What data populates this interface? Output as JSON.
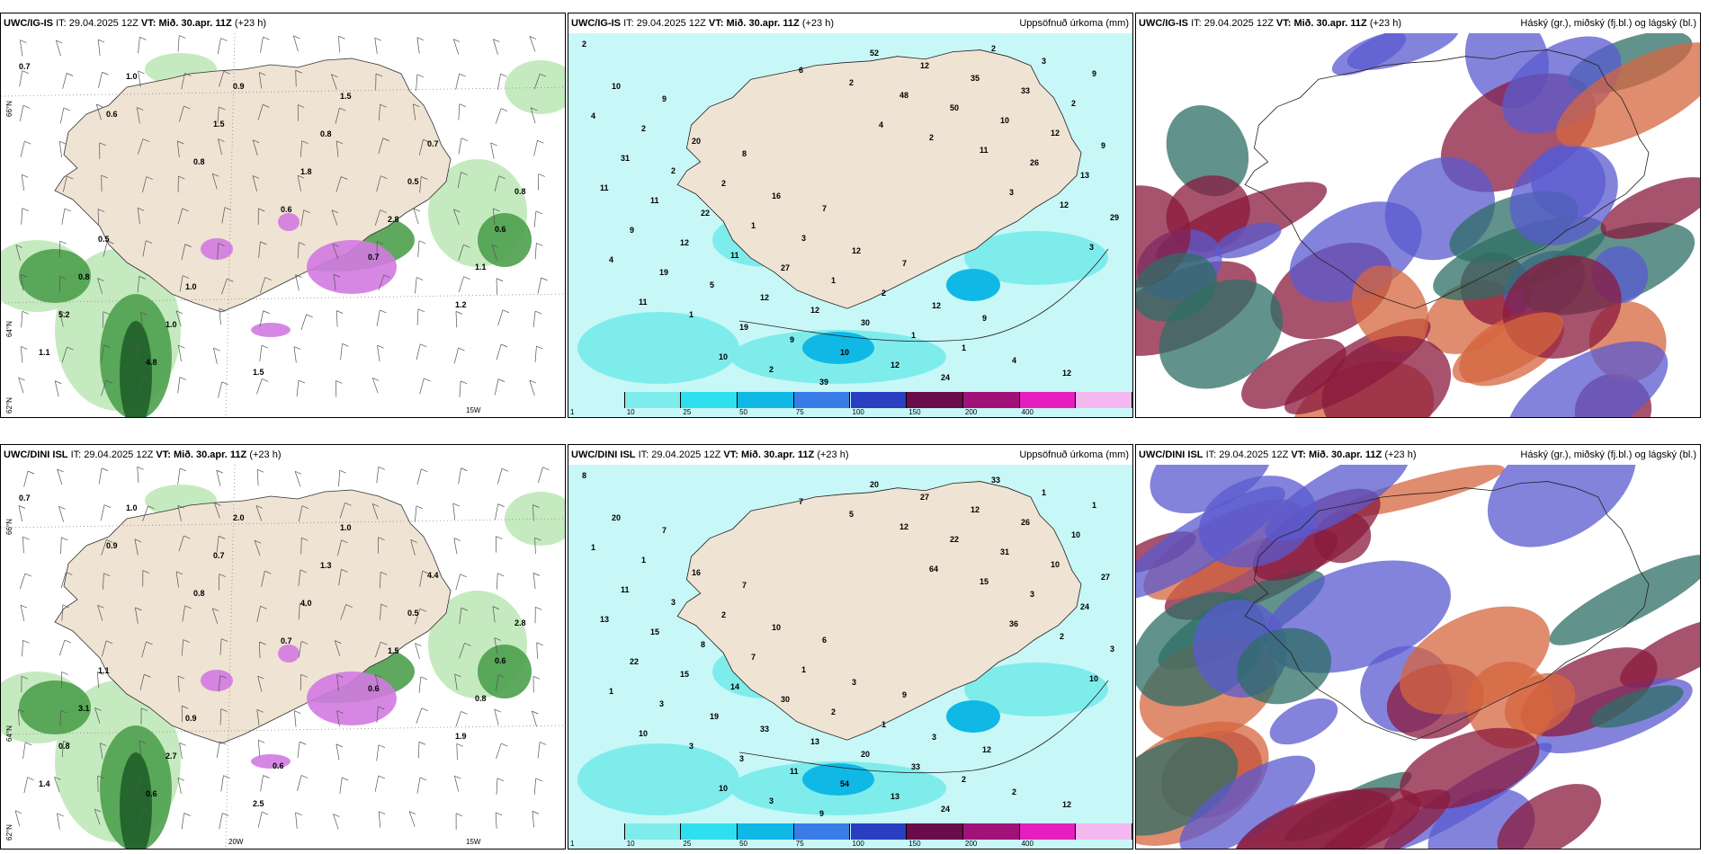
{
  "rows": [
    {
      "model": "UWC/IG-IS",
      "panels": [
        {
          "type": "wind_snow",
          "right_title": "",
          "left_labels": [
            "66°N",
            "64°N",
            "62°N"
          ],
          "bottom_labels": [
            "15W"
          ],
          "values": [
            "0.7",
            "0.6",
            "0.8",
            "0.6",
            "0.7",
            "1.2",
            "1.1",
            "1.0",
            "1.5",
            "1.8",
            "2.8",
            "1.1",
            "5.2",
            "4.8",
            "0.9",
            "0.8",
            "0.5",
            "0.6",
            "0.8",
            "1.0",
            "1.5",
            "1.5",
            "0.7",
            "0.8",
            "0.5",
            "1.0"
          ]
        },
        {
          "type": "precip",
          "right_title": "Uppsöfnuð úrkoma (mm)",
          "values": [
            "2",
            "9",
            "8",
            "7",
            "7",
            "9",
            "12",
            "10",
            "20",
            "16",
            "12",
            "12",
            "4",
            "9",
            "2",
            "2",
            "3",
            "2",
            "1",
            "3",
            "4",
            "2",
            "1",
            "1",
            "1",
            "2",
            "2",
            "31",
            "22",
            "27",
            "30",
            "24",
            "33",
            "9",
            "11",
            "11",
            "12",
            "12",
            "35",
            "12",
            "11",
            "12",
            "12",
            "10",
            "12",
            "10",
            "13",
            "9",
            "5",
            "9",
            "52",
            "50",
            "26",
            "29",
            "19",
            "19",
            "39",
            "48",
            "11",
            "12",
            "4",
            "1",
            "2",
            "2",
            "2",
            "3",
            "3",
            "11",
            "10",
            "6",
            "4"
          ]
        },
        {
          "type": "cloud",
          "right_title": "Háský (gr.), miðský (fj.bl.) og lágský (bl.)",
          "values": []
        }
      ]
    },
    {
      "model": "UWC/DINI ISL",
      "panels": [
        {
          "type": "wind_snow",
          "right_title": "",
          "left_labels": [
            "66°N",
            "64°N",
            "62°N"
          ],
          "bottom_labels": [
            "20W",
            "15W"
          ],
          "values": [
            "0.7",
            "0.9",
            "0.8",
            "0.7",
            "0.6",
            "1.9",
            "1.4",
            "1.0",
            "0.7",
            "4.0",
            "1.5",
            "0.8",
            "0.8",
            "0.6",
            "2.0",
            "1.3",
            "0.5",
            "0.6",
            "3.1",
            "2.7",
            "2.5",
            "1.0",
            "4.4",
            "2.8",
            "1.1",
            "0.9",
            "0.6"
          ]
        },
        {
          "type": "precip",
          "right_title": "Uppsöfnuð úrkoma (mm)",
          "values": [
            "8",
            "7",
            "7",
            "6",
            "9",
            "12",
            "12",
            "20",
            "16",
            "10",
            "3",
            "3",
            "2",
            "1",
            "1",
            "2",
            "1",
            "1",
            "2",
            "1",
            "1",
            "3",
            "7",
            "2",
            "33",
            "33",
            "10",
            "11",
            "8",
            "30",
            "20",
            "24",
            "26",
            "27",
            "15",
            "14",
            "13",
            "13",
            "12",
            "10",
            "13",
            "15",
            "33",
            "54",
            "27",
            "31",
            "24",
            "22",
            "19",
            "11",
            "20",
            "22",
            "3",
            "3",
            "3",
            "3",
            "9",
            "12",
            "15",
            "2",
            "1",
            "3",
            "3",
            "5",
            "64",
            "36",
            "10",
            "10",
            "10",
            "7"
          ]
        },
        {
          "type": "cloud",
          "right_title": "Háský (gr.), miðský (fj.bl.) og lágský (bl.)",
          "values": []
        }
      ]
    }
  ],
  "header_common": {
    "it_label": "IT:",
    "it_value": "29.04.2025 12Z",
    "vt_label": "VT:",
    "vt_value": "Mið. 30.apr. 11Z",
    "lead": "(+23 h)"
  },
  "colorbar": {
    "ticks": [
      "1",
      "10",
      "25",
      "50",
      "75",
      "100",
      "150",
      "200",
      "400"
    ],
    "colors": [
      "#c8f7f7",
      "#7fecec",
      "#2ee0ee",
      "#10b8e6",
      "#3a7ce6",
      "#2a3ec0",
      "#6a0b4b",
      "#a0127a",
      "#e61ec0",
      "#f4b8f0"
    ]
  },
  "colors": {
    "land": "#efe3d3",
    "sea_precip": "#b4f2f2",
    "green_dark": "#1f5f2a",
    "green_mid": "#4da04d",
    "green_light": "#bfe8b8",
    "snow_pink": "#d27ae0",
    "cloud_red": "#8a1a3e",
    "cloud_blue": "#5a5ad0",
    "cloud_teal": "#2d6e66",
    "cloud_orange": "#d5663f"
  }
}
